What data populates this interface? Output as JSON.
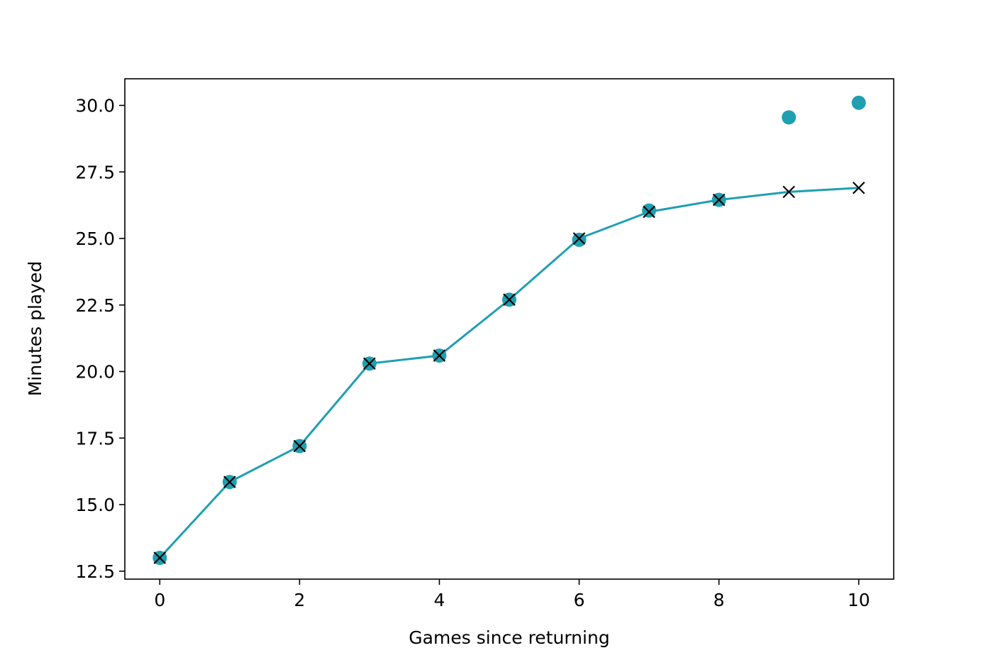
{
  "chart_data": {
    "type": "line",
    "title": "",
    "xlabel": "Games since returning",
    "ylabel": "Minutes played",
    "xlim": [
      -0.5,
      10.5
    ],
    "ylim": [
      12.2,
      31.0
    ],
    "x_ticks": [
      0,
      2,
      4,
      6,
      8,
      10
    ],
    "x_tick_labels": [
      "0",
      "2",
      "4",
      "6",
      "8",
      "10"
    ],
    "y_ticks": [
      12.5,
      15.0,
      17.5,
      20.0,
      22.5,
      25.0,
      27.5,
      30.0
    ],
    "y_tick_labels": [
      "12.5",
      "15.0",
      "17.5",
      "20.0",
      "22.5",
      "25.0",
      "27.5",
      "30.0"
    ],
    "grid": false,
    "legend": "none",
    "x": [
      0,
      1,
      2,
      3,
      4,
      5,
      6,
      7,
      8,
      9,
      10
    ],
    "series": [
      {
        "kind": "scatter",
        "marker": "circle",
        "color": "#1f9fb0",
        "values": [
          13.0,
          15.85,
          17.2,
          20.3,
          20.6,
          22.7,
          24.95,
          26.05,
          26.45,
          29.55,
          30.1
        ]
      },
      {
        "kind": "line",
        "marker": "x",
        "color": "#1f9fb0",
        "marker_color": "#000000",
        "values": [
          13.0,
          15.85,
          17.2,
          20.3,
          20.6,
          22.7,
          25.0,
          26.0,
          26.45,
          26.75,
          26.9
        ]
      }
    ]
  }
}
